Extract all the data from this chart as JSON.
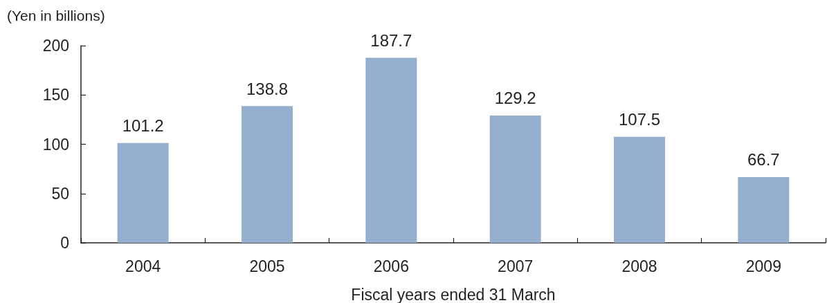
{
  "chart_data": {
    "type": "bar",
    "ylabel": "(Yen in billions)",
    "xlabel": "Fiscal years ended 31 March",
    "categories": [
      "2004",
      "2005",
      "2006",
      "2007",
      "2008",
      "2009"
    ],
    "values": [
      101.2,
      138.8,
      187.7,
      129.2,
      107.5,
      66.7
    ],
    "color": "#95b0cf",
    "ylim": [
      0,
      200
    ],
    "yticks": [
      0,
      50,
      100,
      150,
      200
    ],
    "grid": false,
    "data_labels": true
  }
}
